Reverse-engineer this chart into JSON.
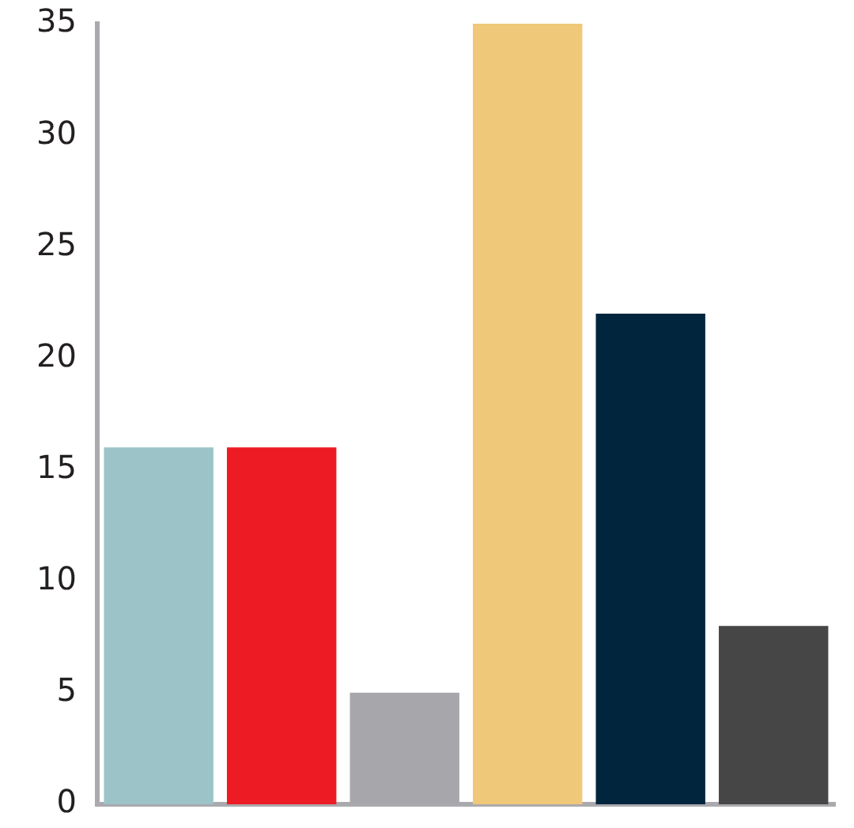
{
  "chart_data": {
    "type": "bar",
    "categories": [
      null,
      null,
      null,
      null,
      null,
      null
    ],
    "values": [
      16,
      16,
      5,
      35,
      22,
      8
    ],
    "colors": [
      "#9cc3c7",
      "#ed1c24",
      "#a7a7ab",
      "#f0c879",
      "#02253e",
      "#464646"
    ],
    "ylim": [
      0,
      35
    ],
    "yticks": [
      0,
      5,
      10,
      15,
      20,
      25,
      30,
      35
    ],
    "grid": false
  }
}
